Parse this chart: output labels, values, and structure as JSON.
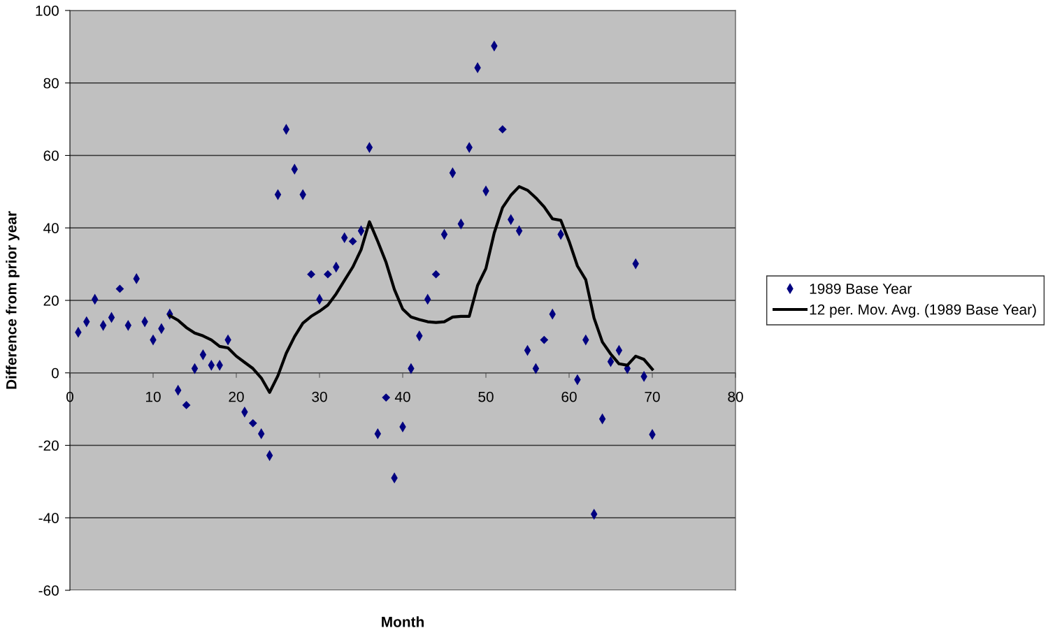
{
  "chart_data": {
    "type": "scatter",
    "xlabel": "Month",
    "ylabel": "Difference from prior year",
    "xlim": [
      0,
      80
    ],
    "xticks": [
      0,
      10,
      20,
      30,
      40,
      50,
      60,
      70,
      80
    ],
    "ylim": [
      -60,
      100
    ],
    "yticks": [
      -60,
      -40,
      -20,
      0,
      20,
      40,
      60,
      80,
      100
    ],
    "grid": "y",
    "legend": "right",
    "series": [
      {
        "name": "1989 Base Year",
        "marker": "diamond",
        "color": "#000080",
        "x": [
          1,
          2,
          3,
          4,
          5,
          7,
          8,
          9,
          10,
          11,
          12,
          13,
          15,
          16,
          17,
          18,
          19,
          20,
          21,
          23,
          24,
          25,
          26,
          27,
          28,
          30,
          32,
          33,
          35,
          36,
          37,
          39,
          40,
          41,
          42,
          43,
          45,
          46,
          47,
          48,
          49,
          50,
          51,
          53,
          54,
          55,
          56,
          58,
          59,
          60,
          61,
          62,
          63,
          64,
          65,
          66,
          67,
          68,
          69,
          70
        ],
        "values": [
          11.2,
          14.1,
          20.3,
          13.1,
          15.3,
          13.1,
          26,
          14.1,
          9.1,
          12.2,
          16.2,
          -4.8,
          1.2,
          5,
          2.1,
          2.1,
          9.1,
          null,
          -10.8,
          -16.8,
          -22.8,
          49.2,
          67.2,
          56.2,
          49.2,
          20.3,
          29.2,
          37.3,
          39.2,
          62.2,
          -16.8,
          -29,
          -14.9,
          1.2,
          10.2,
          20.3,
          38.2,
          55.2,
          41.1,
          62.2,
          84.2,
          50.2,
          90.2,
          42.3,
          39.2,
          6.2,
          1.2,
          16.2,
          38.2,
          null,
          -1.9,
          9.1,
          -39,
          -12.7,
          3.1,
          6.2,
          1.2,
          30.1,
          -1,
          -17
        ]
      },
      {
        "marker": "diamond",
        "color": "#000080",
        "x": [
          6,
          14,
          22,
          29,
          31,
          34,
          38,
          44,
          52,
          57
        ],
        "values": [
          23.2,
          -8.9,
          -13.9,
          27.2,
          27.2,
          36.3,
          -6.8,
          27.2,
          67.2,
          9.1
        ]
      },
      {
        "name": "12 per. Mov. Avg. (1989 Base Year)",
        "type": "line",
        "marker": "none",
        "line_style": "solid",
        "color": "#000000",
        "x": [
          12,
          13,
          14,
          15,
          16,
          17,
          18,
          19,
          20,
          21,
          22,
          23,
          24,
          25,
          26,
          27,
          28,
          29,
          30,
          31,
          32,
          33,
          34,
          35,
          36,
          37,
          38,
          39,
          40,
          41,
          42,
          43,
          44,
          45,
          46,
          47,
          48,
          49,
          50,
          51,
          52,
          53,
          54,
          55,
          56,
          57,
          58,
          59,
          60,
          61,
          62,
          63,
          64,
          65,
          66,
          67,
          68,
          69,
          70
        ],
        "values": [
          15.8,
          14.5,
          12.5,
          11,
          10.2,
          9.1,
          7.3,
          6.9,
          4.6,
          2.9,
          1.2,
          -1.4,
          -5.4,
          -0.8,
          5.4,
          10,
          13.7,
          15.6,
          17,
          18.7,
          21.8,
          25.5,
          29.2,
          34,
          41.7,
          36.3,
          30.5,
          23,
          17.6,
          15.4,
          14.7,
          14.1,
          13.9,
          14.1,
          15.4,
          15.6,
          15.6,
          24.1,
          28.8,
          38.6,
          45.6,
          49,
          51.4,
          50.4,
          48.3,
          45.8,
          42.5,
          42.1,
          36.3,
          29.5,
          25.7,
          15.1,
          8.5,
          5.2,
          2.5,
          2.1,
          4.6,
          3.7,
          1
        ]
      }
    ]
  }
}
